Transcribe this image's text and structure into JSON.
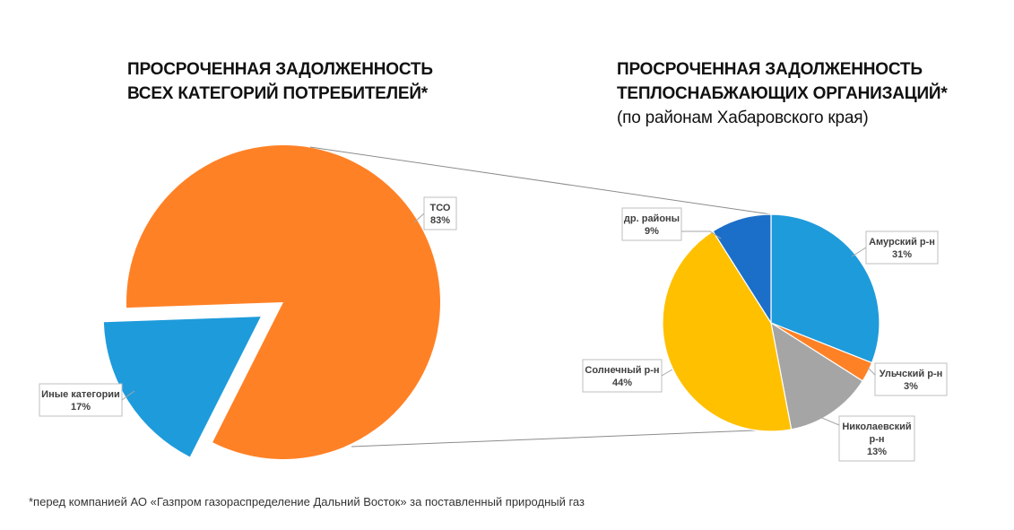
{
  "chart_data": [
    {
      "type": "pie",
      "title_lines": [
        "ПРОСРОЧЕННАЯ ЗАДОЛЖЕННОСТЬ",
        "ВСЕХ КАТЕГОРИЙ ПОТРЕБИТЕЛЕЙ*"
      ],
      "subtitle": "",
      "slices": [
        {
          "label": "ТСО",
          "value": 83,
          "value_label": "83%",
          "color": "#FF8126"
        },
        {
          "label": "Иные категории",
          "value": 17,
          "value_label": "17%",
          "color": "#1E9BDB"
        }
      ]
    },
    {
      "type": "pie",
      "title_lines": [
        "ПРОСРОЧЕННАЯ ЗАДОЛЖЕННОСТЬ",
        "ТЕПЛОСНАБЖАЮЩИХ ОРГАНИЗАЦИЙ*"
      ],
      "subtitle": "(по районам Хабаровского края)",
      "slices": [
        {
          "label": "Амурский р-н",
          "value": 31,
          "value_label": "31%",
          "color": "#1E9BDB"
        },
        {
          "label": "Ульчский р-н",
          "value": 3,
          "value_label": "3%",
          "color": "#FF8126"
        },
        {
          "label": "Николаевский р-н",
          "value": 13,
          "value_label": "13%",
          "color": "#A5A5A5"
        },
        {
          "label": "Солнечный р-н",
          "value": 44,
          "value_label": "44%",
          "color": "#FFC000"
        },
        {
          "label": "др. районы",
          "value": 9,
          "value_label": "9%",
          "color": "#1B6FC8"
        }
      ]
    }
  ],
  "footnote": "*перед компанией АО «Газпром газораспределение Дальний Восток» за поставленный природный газ"
}
